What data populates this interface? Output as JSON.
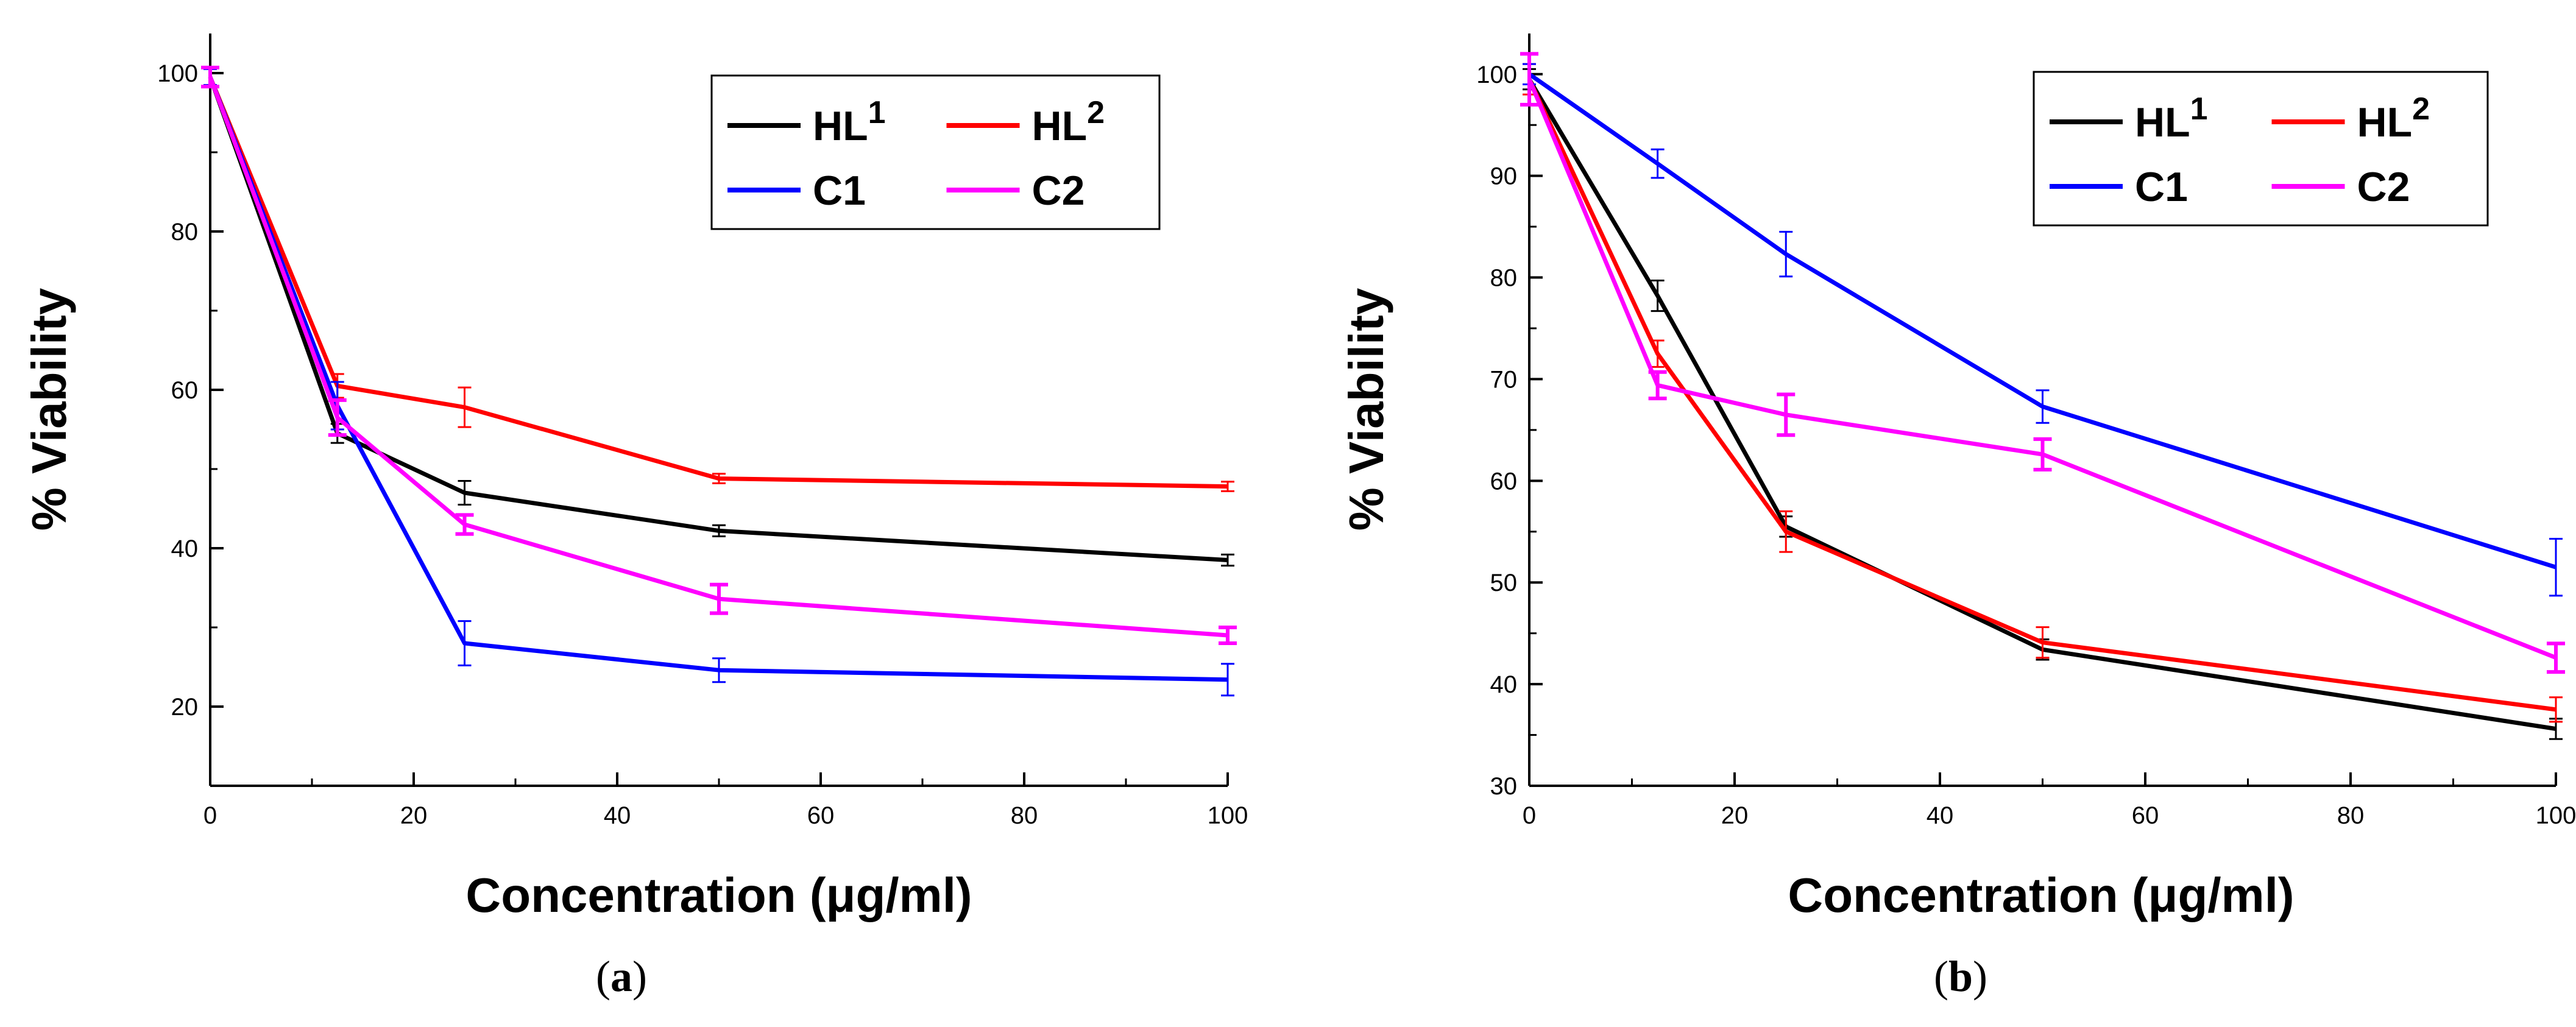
{
  "chart_data": [
    {
      "type": "line",
      "panel_label": "(a)",
      "panel_label_parts": {
        "open": "(",
        "letter": "a",
        "close": ")"
      },
      "xlabel": "Concentration (μg/ml)",
      "ylabel": "% Viability",
      "xlim": [
        0,
        100
      ],
      "ylim": [
        10,
        105
      ],
      "xticks": [
        0,
        20,
        40,
        60,
        80,
        100
      ],
      "yticks": [
        20,
        40,
        60,
        80,
        100
      ],
      "legend_position": "top-right",
      "series": [
        {
          "name": "HL1",
          "label_base": "HL",
          "label_sup": "1",
          "color": "#000000",
          "x": [
            0,
            12.5,
            25,
            50,
            100
          ],
          "y": [
            99.5,
            54.5,
            47,
            42.2,
            38.5
          ],
          "err": [
            1.0,
            1.2,
            1.5,
            0.7,
            0.7
          ],
          "err_bold": false
        },
        {
          "name": "HL2",
          "label_base": "HL",
          "label_sup": "2",
          "color": "#ff0000",
          "x": [
            0,
            12.5,
            25,
            50,
            100
          ],
          "y": [
            99.5,
            60.5,
            57.8,
            48.8,
            47.8
          ],
          "err": [
            1.2,
            1.5,
            2.5,
            0.6,
            0.6
          ],
          "err_bold": false
        },
        {
          "name": "C1",
          "label_base": "C1",
          "label_sup": "",
          "color": "#0000ff",
          "x": [
            0,
            12.5,
            25,
            50,
            100
          ],
          "y": [
            99.5,
            58,
            28,
            24.6,
            23.4
          ],
          "err": [
            1.0,
            3.0,
            2.8,
            1.5,
            2.0
          ],
          "err_bold": false
        },
        {
          "name": "C2",
          "label_base": "C2",
          "label_sup": "",
          "color": "#ff00ff",
          "x": [
            0,
            12.5,
            25,
            50,
            100
          ],
          "y": [
            99.5,
            56.5,
            43,
            33.6,
            29
          ],
          "err": [
            1.2,
            2.2,
            1.2,
            1.8,
            1.0
          ],
          "err_bold": true
        }
      ]
    },
    {
      "type": "line",
      "panel_label": "(b)",
      "panel_label_parts": {
        "open": "(",
        "letter": "b",
        "close": ")"
      },
      "xlabel": "Concentration (μg/ml)",
      "ylabel": "% Viability",
      "xlim": [
        0,
        100
      ],
      "ylim": [
        30,
        104
      ],
      "xticks": [
        0,
        20,
        40,
        60,
        80,
        100
      ],
      "yticks": [
        30,
        40,
        50,
        60,
        70,
        80,
        90,
        100
      ],
      "legend_position": "top-right",
      "series": [
        {
          "name": "HL1",
          "label_base": "HL",
          "label_sup": "1",
          "color": "#000000",
          "x": [
            0,
            12.5,
            25,
            50,
            100
          ],
          "y": [
            99.5,
            78.2,
            55.5,
            43.4,
            35.6
          ],
          "err": [
            1.0,
            1.5,
            1.0,
            1.0,
            1.0
          ],
          "err_bold": false
        },
        {
          "name": "HL2",
          "label_base": "HL",
          "label_sup": "2",
          "color": "#ff0000",
          "x": [
            0,
            12.5,
            25,
            50,
            100
          ],
          "y": [
            99.5,
            72.5,
            55,
            44.1,
            37.5
          ],
          "err": [
            1.5,
            1.3,
            2.0,
            1.5,
            1.2
          ],
          "err_bold": false
        },
        {
          "name": "C1",
          "label_base": "C1",
          "label_sup": "",
          "color": "#0000ff",
          "x": [
            0,
            12.5,
            25,
            50,
            100
          ],
          "y": [
            100,
            91.2,
            82.3,
            67.3,
            51.5
          ],
          "err": [
            1.0,
            1.4,
            2.2,
            1.6,
            2.8
          ],
          "err_bold": false
        },
        {
          "name": "C2",
          "label_base": "C2",
          "label_sup": "",
          "color": "#ff00ff",
          "x": [
            0,
            12.5,
            25,
            50,
            100
          ],
          "y": [
            99.5,
            69.4,
            66.5,
            62.6,
            42.6
          ],
          "err": [
            2.5,
            1.3,
            2.0,
            1.5,
            1.4
          ],
          "err_bold": true
        }
      ]
    }
  ]
}
